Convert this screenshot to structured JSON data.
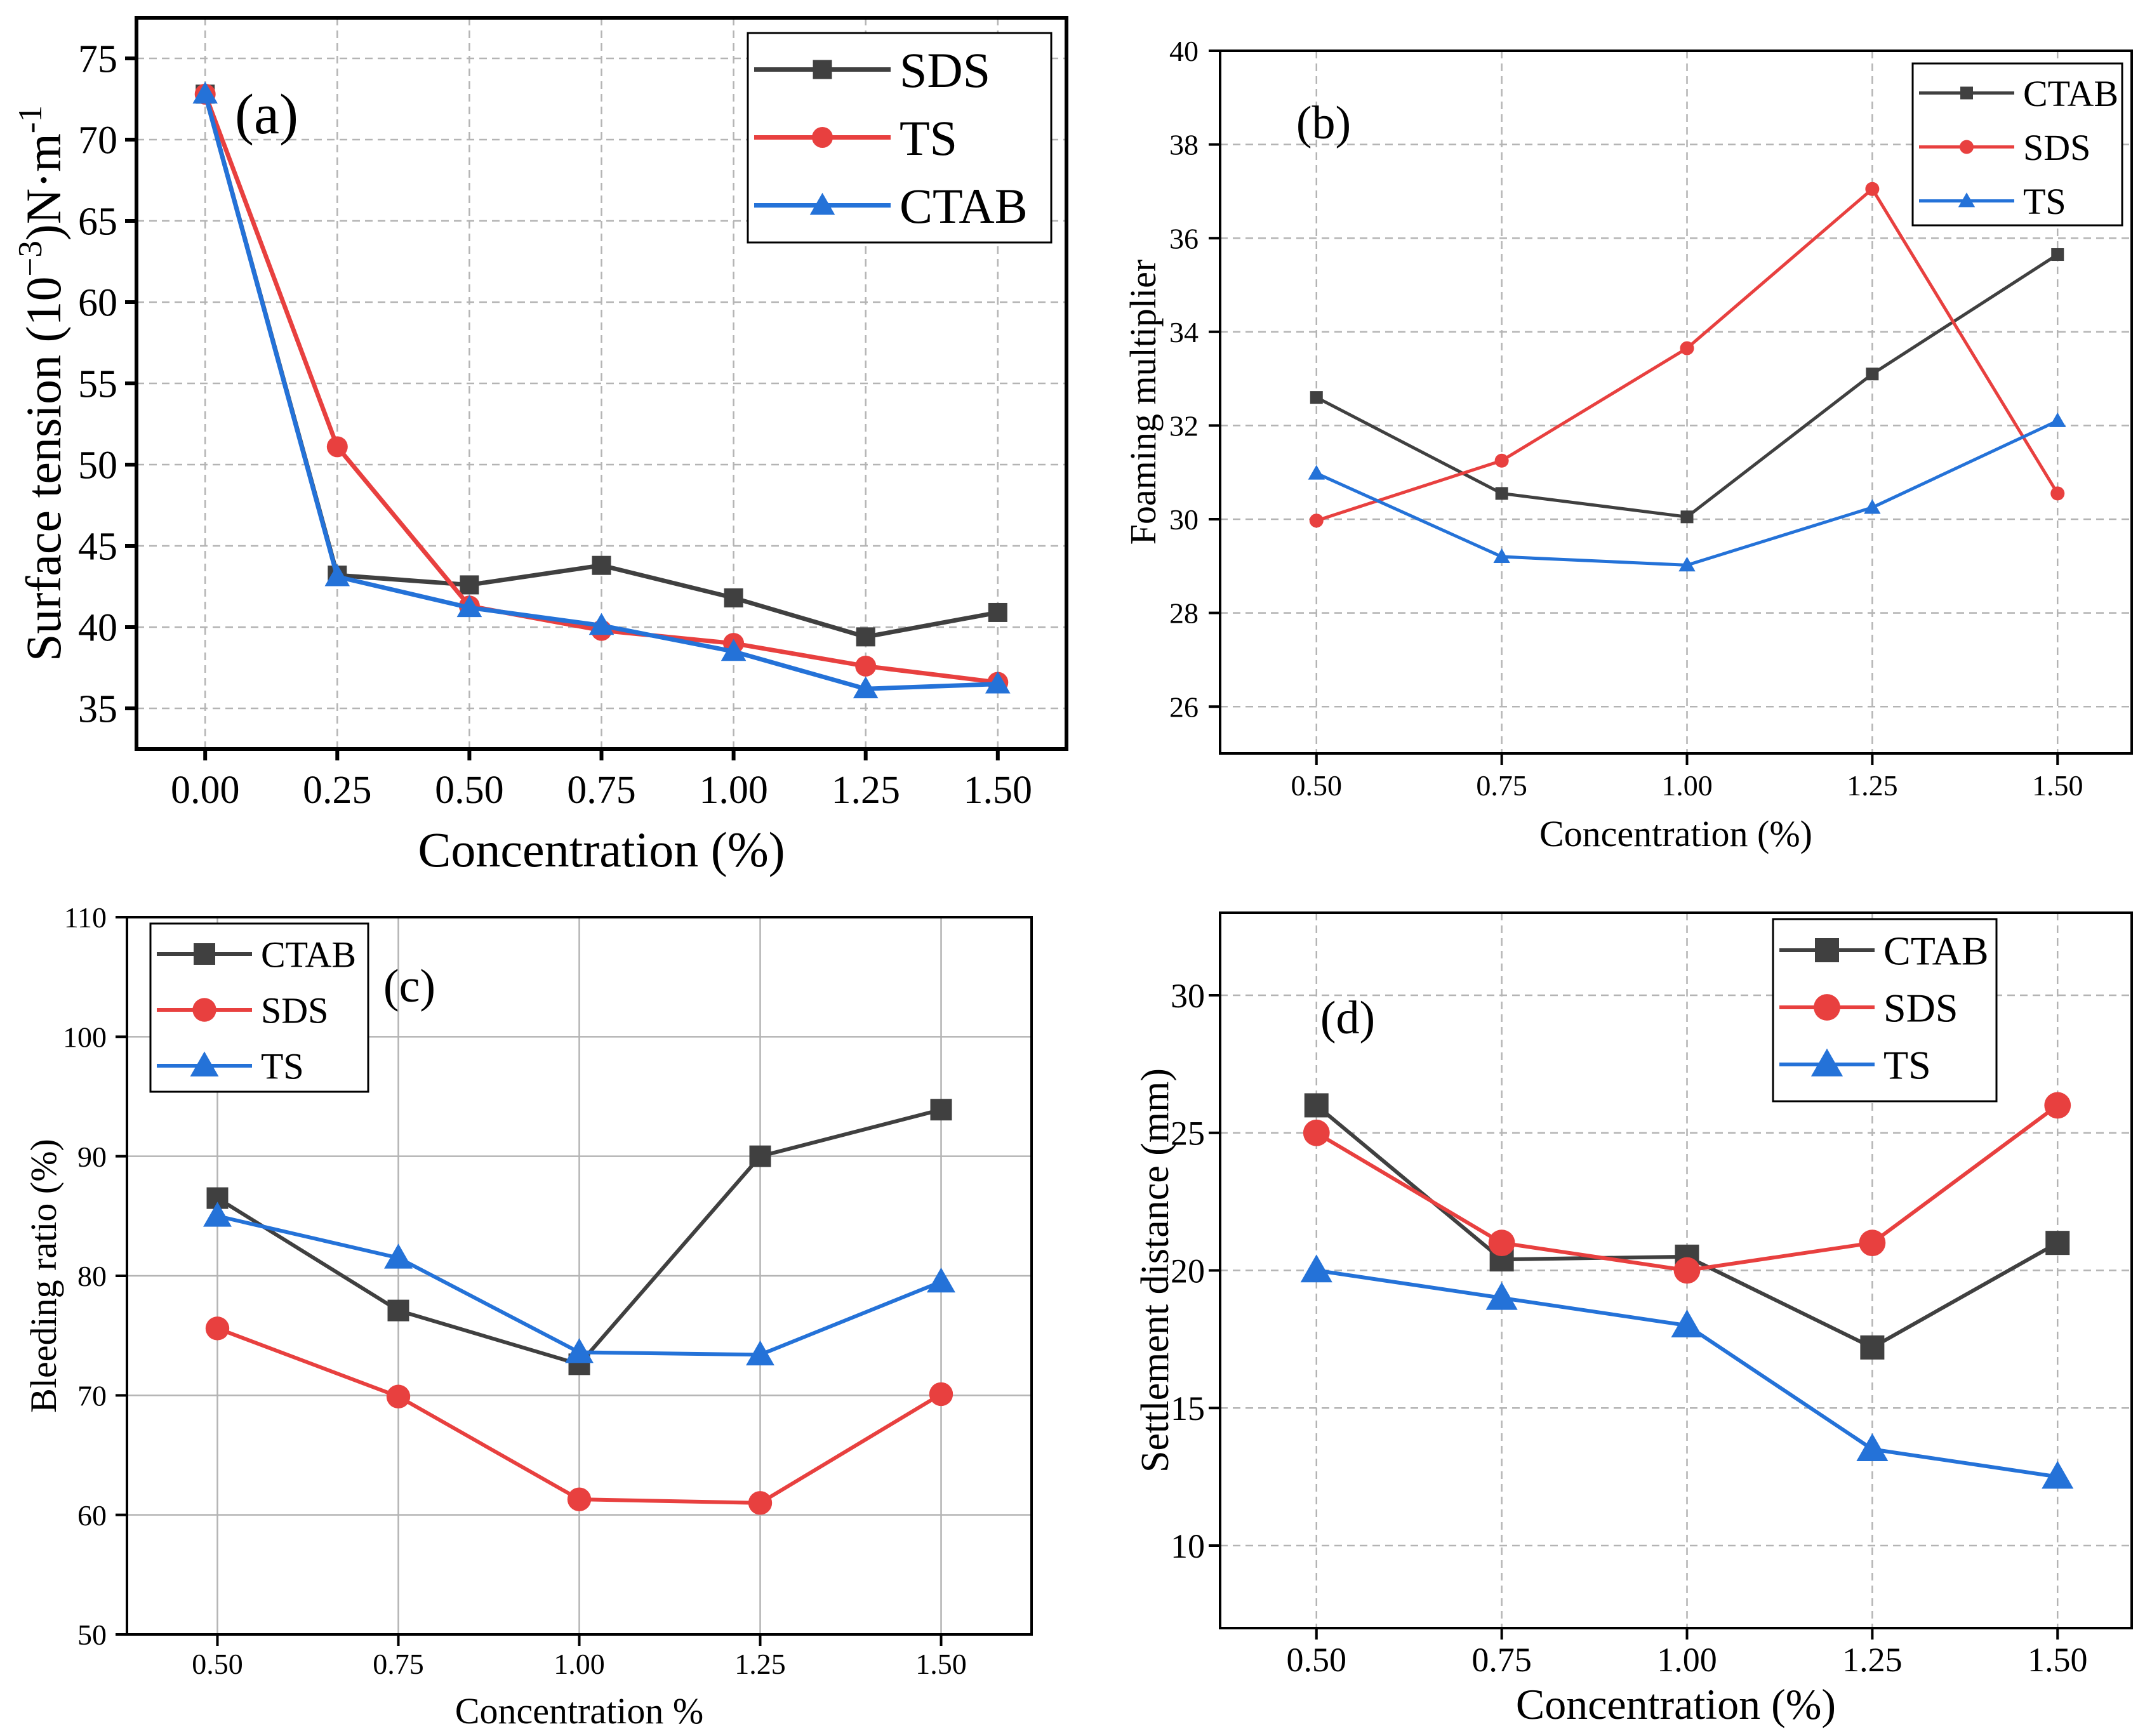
{
  "colors": {
    "CTAB": "#404040",
    "SDS": "#e8403f",
    "TS": "#2472d8",
    "grid": "#b4b4b4",
    "axis": "#000000"
  },
  "chart_data": [
    {
      "id": "a",
      "type": "line",
      "panel_label": "(a)",
      "xlabel": "Concentration (%)",
      "ylabel_main": "Surface tension (10",
      "ylabel_exp": "−3",
      "ylabel_unit": ")N·m",
      "ylabel_exp2": "-1",
      "x": [
        0.0,
        0.25,
        0.5,
        0.75,
        1.0,
        1.25,
        1.5
      ],
      "xticks": [
        "0.00",
        "0.25",
        "0.50",
        "0.75",
        "1.00",
        "1.25",
        "1.50"
      ],
      "xlim": [
        -0.13,
        1.63
      ],
      "ylim": [
        32.5,
        77.5
      ],
      "yticks": [
        35,
        40,
        45,
        50,
        55,
        60,
        65,
        70,
        75
      ],
      "legend_position": "top-right",
      "series": [
        {
          "name": "SDS",
          "color_key": "CTAB",
          "marker": "square",
          "values": [
            72.8,
            43.2,
            42.6,
            43.8,
            41.8,
            39.4,
            40.9
          ]
        },
        {
          "name": "TS",
          "color_key": "SDS",
          "marker": "circle",
          "values": [
            72.8,
            51.1,
            41.3,
            39.8,
            39.0,
            37.6,
            36.6
          ]
        },
        {
          "name": "CTAB",
          "color_key": "TS",
          "marker": "triangle",
          "values": [
            72.8,
            43.1,
            41.2,
            40.1,
            38.5,
            36.2,
            36.5
          ]
        }
      ]
    },
    {
      "id": "b",
      "type": "line",
      "panel_label": "(b)",
      "xlabel": "Concentration (%)",
      "ylabel": "Foaming multiplier",
      "x": [
        0.5,
        0.75,
        1.0,
        1.25,
        1.5
      ],
      "xticks": [
        "0.50",
        "0.75",
        "1.00",
        "1.25",
        "1.50"
      ],
      "xlim": [
        0.37,
        1.6
      ],
      "ylim": [
        25,
        40
      ],
      "yticks": [
        26,
        28,
        30,
        32,
        34,
        36,
        38,
        40
      ],
      "legend_position": "top-right",
      "series": [
        {
          "name": "CTAB",
          "color_key": "CTAB",
          "marker": "square",
          "values": [
            32.6,
            30.55,
            30.05,
            33.1,
            35.65
          ]
        },
        {
          "name": "SDS",
          "color_key": "SDS",
          "marker": "circle",
          "values": [
            29.97,
            31.25,
            33.65,
            37.05,
            30.55
          ]
        },
        {
          "name": "TS",
          "color_key": "TS",
          "marker": "triangle",
          "values": [
            30.98,
            29.2,
            29.02,
            30.25,
            32.1
          ]
        }
      ]
    },
    {
      "id": "c",
      "type": "line",
      "panel_label": "(c)",
      "xlabel": "Concentration %",
      "ylabel": "Bleeding ratio (%)",
      "x": [
        0.5,
        0.75,
        1.0,
        1.25,
        1.5
      ],
      "xticks": [
        "0.50",
        "0.75",
        "1.00",
        "1.25",
        "1.50"
      ],
      "xlim": [
        0.375,
        1.625
      ],
      "ylim": [
        50,
        110
      ],
      "yticks": [
        50,
        60,
        70,
        80,
        90,
        100,
        110
      ],
      "legend_position": "top-left",
      "series": [
        {
          "name": "CTAB",
          "color_key": "CTAB",
          "marker": "square",
          "values": [
            86.5,
            77.1,
            72.6,
            90.0,
            93.9
          ]
        },
        {
          "name": "SDS",
          "color_key": "SDS",
          "marker": "circle",
          "values": [
            75.6,
            69.9,
            61.3,
            61.0,
            70.1
          ]
        },
        {
          "name": "TS",
          "color_key": "TS",
          "marker": "triangle",
          "values": [
            85.0,
            81.5,
            73.6,
            73.4,
            79.5
          ]
        }
      ]
    },
    {
      "id": "d",
      "type": "line",
      "panel_label": "(d)",
      "xlabel": "Concentration (%)",
      "ylabel": "Settlement distance (mm)",
      "x": [
        0.5,
        0.75,
        1.0,
        1.25,
        1.5
      ],
      "xticks": [
        "0.50",
        "0.75",
        "1.00",
        "1.25",
        "1.50"
      ],
      "xlim": [
        0.37,
        1.6
      ],
      "ylim": [
        7,
        33
      ],
      "yticks": [
        10,
        15,
        20,
        25,
        30
      ],
      "legend_position": "top-right",
      "series": [
        {
          "name": "CTAB",
          "color_key": "CTAB",
          "marker": "square",
          "values": [
            26.0,
            20.4,
            20.5,
            17.2,
            21.0
          ]
        },
        {
          "name": "SDS",
          "color_key": "SDS",
          "marker": "circle",
          "values": [
            25.0,
            21.0,
            20.0,
            21.0,
            26.0
          ]
        },
        {
          "name": "TS",
          "color_key": "TS",
          "marker": "triangle",
          "values": [
            20.0,
            19.0,
            18.0,
            13.5,
            12.5
          ]
        }
      ]
    }
  ]
}
